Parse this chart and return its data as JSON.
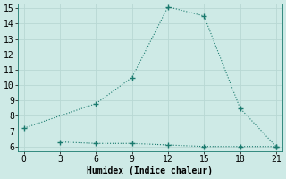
{
  "line1_x": [
    0,
    6,
    9,
    12,
    15,
    18,
    21
  ],
  "line1_y": [
    7.2,
    8.8,
    10.5,
    15.1,
    14.5,
    8.5,
    6.0
  ],
  "line2_x": [
    3,
    6,
    9,
    12,
    15,
    18,
    21
  ],
  "line2_y": [
    6.3,
    6.2,
    6.2,
    6.1,
    6.0,
    6.0,
    6.0
  ],
  "line_color": "#1a7a6e",
  "bg_color": "#ceeae6",
  "grid_color": "#b8d8d4",
  "xlabel": "Humidex (Indice chaleur)",
  "xlim": [
    -0.5,
    21.5
  ],
  "ylim": [
    5.7,
    15.3
  ],
  "xticks": [
    0,
    3,
    6,
    9,
    12,
    15,
    18,
    21
  ],
  "yticks": [
    6,
    7,
    8,
    9,
    10,
    11,
    12,
    13,
    14,
    15
  ],
  "label_fontsize": 7,
  "tick_fontsize": 7
}
